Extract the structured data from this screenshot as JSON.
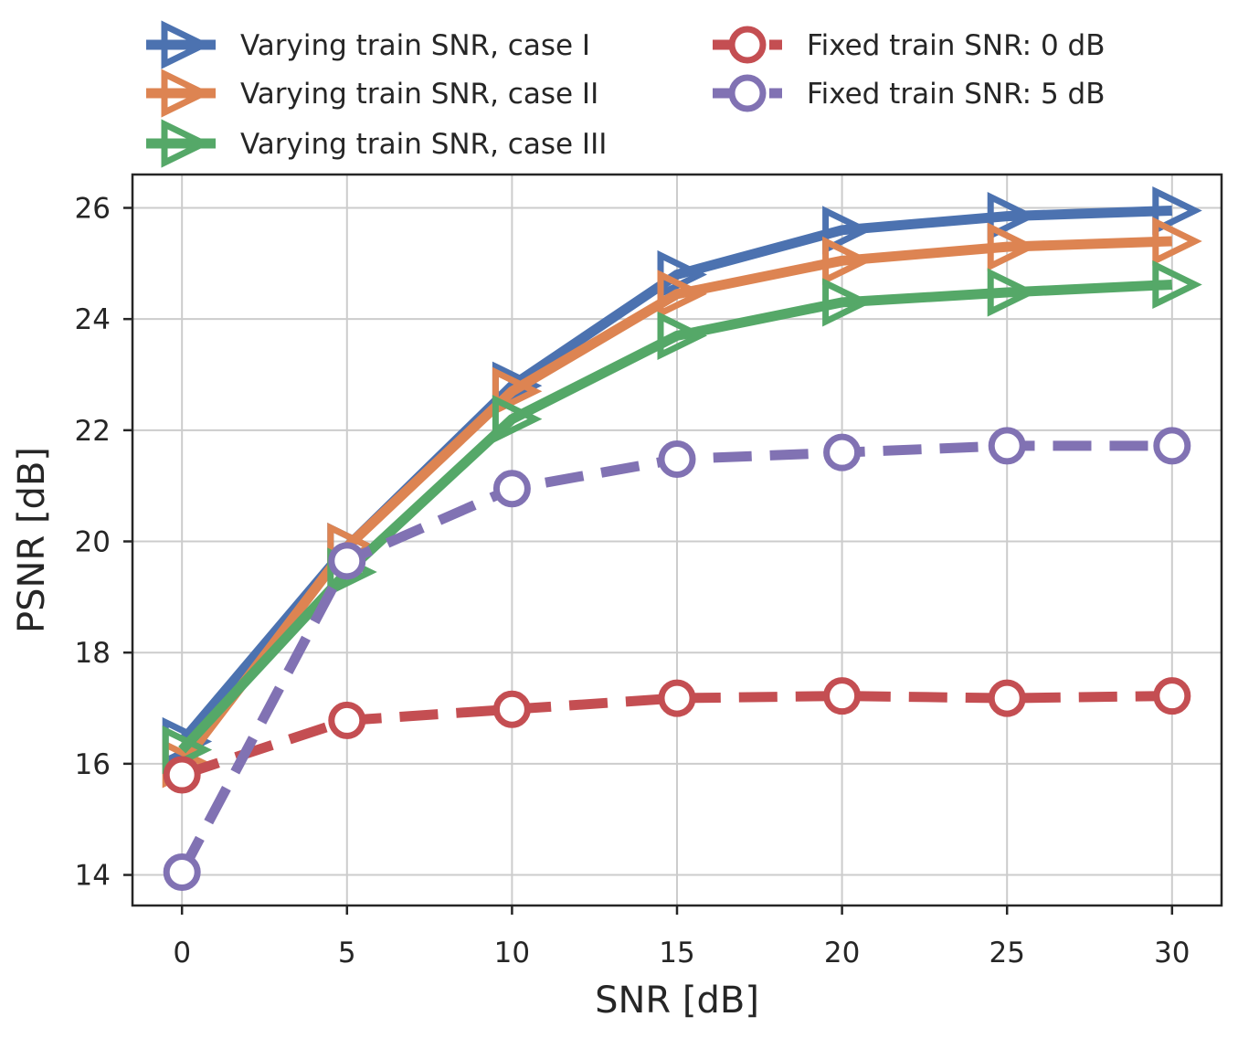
{
  "chart_data": {
    "type": "line",
    "xlabel": "SNR [dB]",
    "ylabel": "PSNR [dB]",
    "xlim": [
      -1.5,
      31.5
    ],
    "ylim": [
      13.45,
      26.6
    ],
    "xticks": [
      0,
      5,
      10,
      15,
      20,
      25,
      30
    ],
    "yticks": [
      14,
      16,
      18,
      20,
      22,
      24,
      26
    ],
    "grid": true,
    "legend_position": "top",
    "x": [
      0,
      5,
      10,
      15,
      20,
      25,
      30
    ],
    "series": [
      {
        "name": "Varying train SNR, case I",
        "values": [
          16.4,
          19.9,
          22.8,
          24.8,
          25.6,
          25.85,
          25.95
        ],
        "color": "#4c72b0",
        "marker": "triangle-right",
        "linestyle": "solid"
      },
      {
        "name": "Varying train SNR, case II",
        "values": [
          16.0,
          19.9,
          22.7,
          24.45,
          25.05,
          25.3,
          25.4
        ],
        "color": "#dd8452",
        "marker": "triangle-right",
        "linestyle": "solid"
      },
      {
        "name": "Varying train SNR, case III",
        "values": [
          16.25,
          19.45,
          22.2,
          23.7,
          24.3,
          24.48,
          24.62
        ],
        "color": "#55a868",
        "marker": "triangle-right",
        "linestyle": "solid"
      },
      {
        "name": "Fixed train SNR: 0 dB",
        "values": [
          15.8,
          16.78,
          16.98,
          17.18,
          17.22,
          17.18,
          17.22
        ],
        "color": "#c44e52",
        "marker": "circle",
        "linestyle": "dashed"
      },
      {
        "name": "Fixed train SNR: 5 dB",
        "values": [
          14.05,
          19.65,
          20.95,
          21.48,
          21.6,
          21.72,
          21.72
        ],
        "color": "#8172b3",
        "marker": "circle",
        "linestyle": "dashed"
      }
    ]
  }
}
